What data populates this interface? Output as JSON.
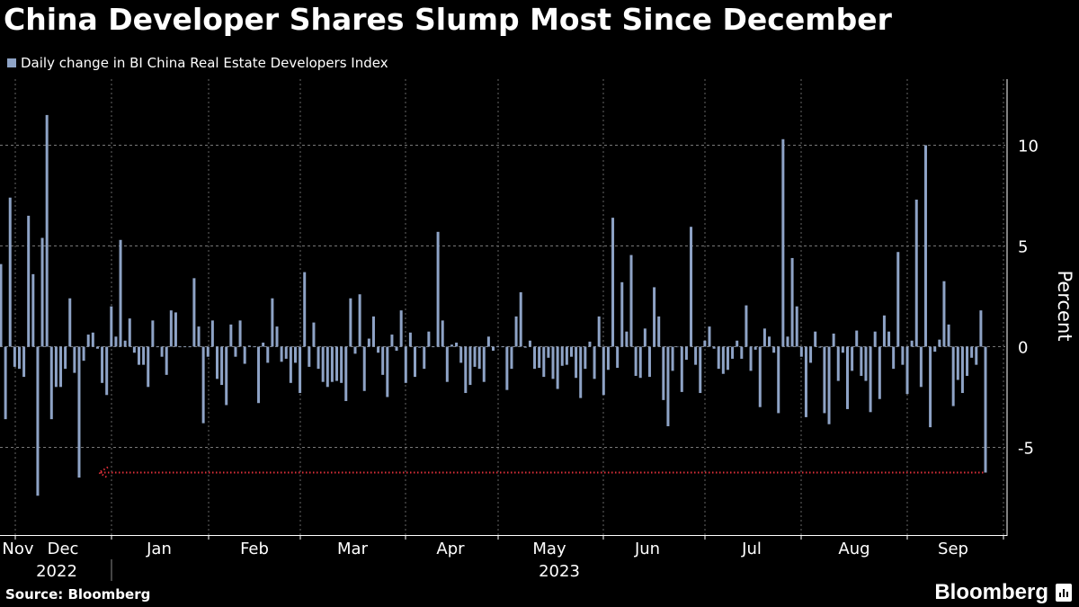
{
  "title": "China Developer Shares Slump Most Since December",
  "legend": {
    "label": "Daily change in BI China Real Estate Developers Index",
    "color": "#8ea3c6"
  },
  "footer": {
    "source": "Source: Bloomberg",
    "brand": "Bloomberg",
    "brand_icon": "bar-chart-icon"
  },
  "chart_data": {
    "type": "bar",
    "title": "China Developer Shares Slump Most Since December",
    "ylabel": "Percent",
    "xlabel": "",
    "ylim": [
      -8,
      13
    ],
    "yticks": [
      10,
      5,
      0,
      -5
    ],
    "x_tick_labels": [
      "Nov",
      "Dec",
      "Jan",
      "Feb",
      "Mar",
      "Apr",
      "May",
      "Jun",
      "Jul",
      "Aug",
      "Sep"
    ],
    "x_year_labels": [
      "2022",
      "2023"
    ],
    "x_range": [
      "Nov 2022",
      "Sep 2023"
    ],
    "grid": true,
    "legend_position": "top-left",
    "bar_color": "#8ea3c6",
    "annotation": {
      "type": "dotted-arrow",
      "color": "#e0303a",
      "value": -6.25,
      "points_to": "Dec 2022"
    },
    "series": [
      {
        "name": "Daily change in BI China Real Estate Developers Index",
        "values": [
          4.1,
          -3.6,
          7.4,
          -1.0,
          -1.1,
          -1.5,
          6.5,
          3.6,
          -7.4,
          5.4,
          11.5,
          -3.6,
          -2.0,
          -2.0,
          -1.1,
          2.4,
          -1.3,
          -6.5,
          -0.7,
          0.6,
          0.7,
          -0.1,
          -1.8,
          -2.4,
          2.0,
          0.5,
          5.3,
          0.3,
          1.4,
          -0.3,
          -0.9,
          -0.9,
          -2.0,
          1.3,
          0.0,
          -0.5,
          -1.4,
          1.8,
          1.7,
          0.0,
          0.0,
          0.0,
          3.4,
          1.0,
          -3.8,
          -0.5,
          1.3,
          -1.6,
          -1.9,
          -2.9,
          1.1,
          -0.5,
          1.3,
          -0.85,
          0.05,
          0.0,
          -2.8,
          0.2,
          -0.8,
          2.4,
          1.0,
          -0.75,
          -0.6,
          -1.8,
          -0.8,
          -2.3,
          3.7,
          -1.0,
          1.2,
          -1.1,
          -1.75,
          -2.0,
          -1.75,
          -1.7,
          -1.8,
          -2.7,
          2.4,
          -0.35,
          2.6,
          -2.2,
          0.4,
          1.5,
          -0.3,
          -1.4,
          -2.5,
          0.6,
          -0.2,
          1.8,
          -1.8,
          0.7,
          -1.5,
          -0.05,
          -1.1,
          0.75,
          0.0,
          5.7,
          1.3,
          -1.75,
          0.1,
          0.2,
          -0.8,
          -2.3,
          -1.9,
          -1.0,
          -1.1,
          -1.75,
          0.5,
          -0.2,
          0.0,
          0.0,
          -2.15,
          -1.1,
          1.5,
          2.7,
          -0.05,
          0.3,
          -1.1,
          -1.05,
          -1.5,
          -0.55,
          -1.6,
          -2.1,
          -0.95,
          -0.9,
          -0.5,
          -1.55,
          -2.55,
          -1.1,
          0.25,
          -1.6,
          1.5,
          -2.4,
          -1.15,
          6.4,
          -1.05,
          3.2,
          0.75,
          4.55,
          -1.45,
          -1.55,
          0.9,
          -1.5,
          2.95,
          1.5,
          -2.65,
          -3.95,
          -1.2,
          0.0,
          -2.25,
          -0.65,
          5.95,
          -0.9,
          -2.3,
          0.3,
          1.0,
          -0.1,
          -1.1,
          -1.35,
          -1.15,
          -0.6,
          0.3,
          -0.6,
          2.05,
          -1.2,
          -0.15,
          -3.0,
          0.9,
          0.5,
          -0.3,
          -3.3,
          10.3,
          0.5,
          4.4,
          2.0,
          -0.5,
          -3.5,
          -0.8,
          0.75,
          -0.05,
          -3.3,
          -3.85,
          0.65,
          -1.7,
          -0.3,
          -3.1,
          -1.2,
          0.8,
          -1.45,
          -1.7,
          -3.25,
          0.75,
          -2.6,
          1.55,
          0.75,
          -1.1,
          4.7,
          -0.9,
          -2.35,
          0.3,
          7.3,
          -2.0,
          10.0,
          -4.0,
          -0.25,
          0.35,
          3.25,
          1.1,
          -2.95,
          -1.65,
          -2.3,
          -1.45,
          -0.55,
          -0.9,
          1.8,
          -6.25
        ]
      }
    ]
  }
}
